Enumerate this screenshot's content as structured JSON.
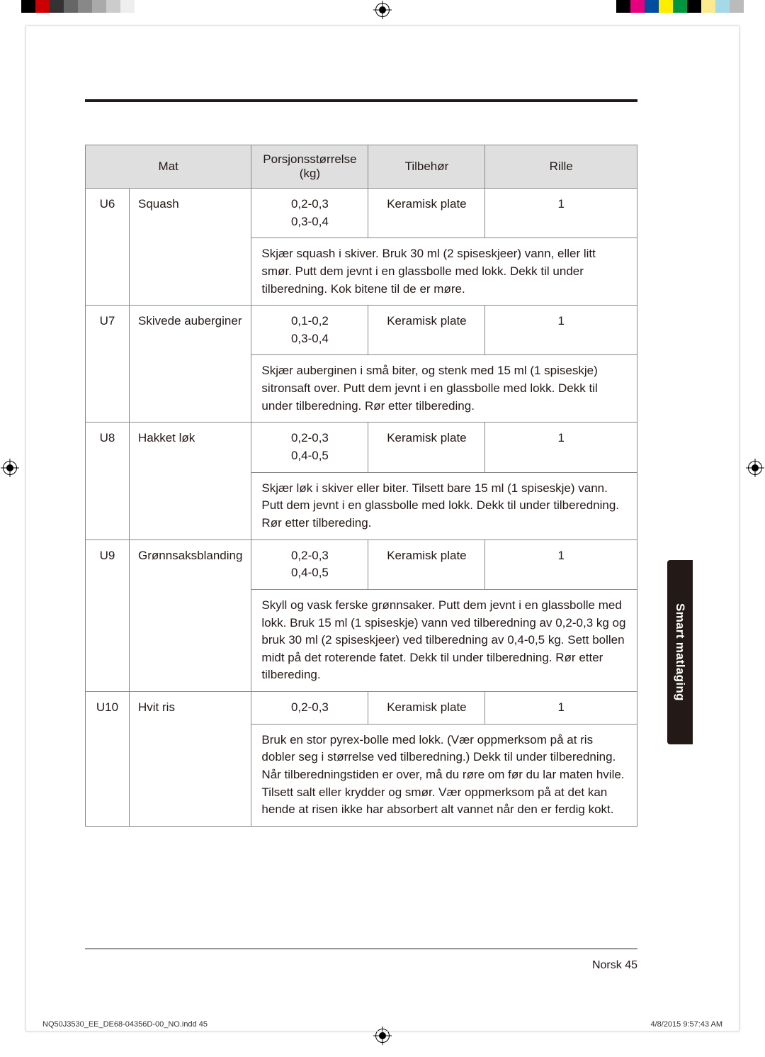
{
  "headers": {
    "mat": "Mat",
    "portion": "Porsjonsstørrelse (kg)",
    "acc": "Tilbehør",
    "rille": "Rille"
  },
  "rows": [
    {
      "code": "U6",
      "food": "Squash",
      "portion": "0,2-0,3\n0,3-0,4",
      "acc": "Keramisk plate",
      "rille": "1",
      "instr": "Skjær squash i skiver. Bruk 30 ml (2 spiseskjeer) vann, eller litt smør. Putt dem jevnt i en glassbolle med lokk. Dekk til under tilberedning. Kok bitene til de er møre."
    },
    {
      "code": "U7",
      "food": "Skivede auberginer",
      "portion": "0,1-0,2\n0,3-0,4",
      "acc": "Keramisk plate",
      "rille": "1",
      "instr": "Skjær auberginen i små biter, og stenk med 15 ml (1 spiseskje) sitronsaft over. Putt dem jevnt i en glassbolle med lokk. Dekk til under tilberedning. Rør etter tilbereding."
    },
    {
      "code": "U8",
      "food": "Hakket løk",
      "portion": "0,2-0,3\n0,4-0,5",
      "acc": "Keramisk plate",
      "rille": "1",
      "instr": "Skjær løk i skiver eller biter. Tilsett bare 15 ml (1 spiseskje) vann. Putt dem jevnt i en glassbolle med lokk. Dekk til under tilberedning. Rør etter tilbereding."
    },
    {
      "code": "U9",
      "food": "Grønnsaksblanding",
      "portion": "0,2-0,3\n0,4-0,5",
      "acc": "Keramisk plate",
      "rille": "1",
      "instr": "Skyll og vask ferske grønnsaker. Putt dem jevnt i en glassbolle med lokk. Bruk 15 ml (1 spiseskje) vann ved tilberedning av 0,2-0,3 kg og bruk 30 ml (2 spiseskjeer) ved tilberedning av 0,4-0,5 kg. Sett bollen midt på det roterende fatet. Dekk til under tilberedning. Rør etter tilbereding."
    },
    {
      "code": "U10",
      "food": "Hvit ris",
      "portion": "0,2-0,3",
      "acc": "Keramisk plate",
      "rille": "1",
      "instr": "Bruk en stor pyrex-bolle med lokk. (Vær oppmerksom på at ris dobler seg i størrelse ved tilberedning.) Dekk til under tilberedning. Når tilberedningstiden er over, må du røre om før du lar maten hvile. Tilsett salt eller krydder og smør. Vær oppmerksom på at det kan hende at risen ikke har absorbert alt vannet når den er ferdig kokt."
    }
  ],
  "sideTab": "Smart matlaging",
  "pageLabel": "Norsk  45",
  "printFile": "NQ50J3530_EE_DE68-04356D-00_NO.indd   45",
  "printDate": "4/8/2015   9:57:43 AM",
  "style": {
    "darkInk": "#231916",
    "headerBg": "#dfdfdf",
    "border": "#888",
    "bodyFont": 17
  }
}
